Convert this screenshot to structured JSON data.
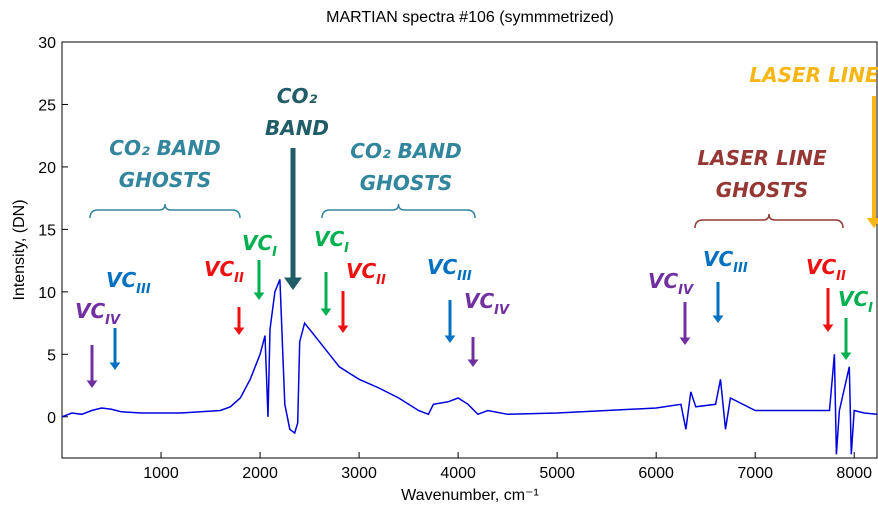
{
  "chart_data": {
    "type": "line",
    "title": "MARTIAN spectra #106 (symmmetrized)",
    "x_label": "Wavenumber, cm⁻¹",
    "y_label": "Intensity, (DN)",
    "xlim": [
      0,
      8230
    ],
    "ylim": [
      -3.3,
      30
    ],
    "xticks": [
      1000,
      2000,
      3000,
      4000,
      5000,
      6000,
      7000,
      8000
    ],
    "yticks": [
      0,
      5,
      10,
      15,
      20,
      25,
      30
    ],
    "series": [
      {
        "color": "#0000dd",
        "x": [
          0,
          100,
          200,
          300,
          400,
          500,
          600,
          800,
          1000,
          1200,
          1400,
          1600,
          1700,
          1800,
          1900,
          2000,
          2050,
          2080,
          2100,
          2150,
          2200,
          2250,
          2300,
          2350,
          2380,
          2400,
          2450,
          2500,
          2600,
          2700,
          2800,
          2900,
          3000,
          3200,
          3400,
          3600,
          3700,
          3750,
          3900,
          4000,
          4100,
          4200,
          4300,
          4500,
          5000,
          5500,
          6000,
          6250,
          6300,
          6350,
          6400,
          6600,
          6650,
          6700,
          6750,
          7000,
          7500,
          7750,
          7800,
          7820,
          7850,
          7950,
          7970,
          8000,
          8100,
          8230
        ],
        "values": [
          0,
          0.3,
          0.2,
          0.5,
          0.7,
          0.6,
          0.4,
          0.3,
          0.3,
          0.3,
          0.4,
          0.5,
          0.8,
          1.5,
          3,
          5,
          6.5,
          0,
          7,
          10,
          11,
          1,
          -1,
          -1.3,
          -0.5,
          6,
          7.5,
          7,
          6,
          5,
          4,
          3.5,
          3,
          2.3,
          1.5,
          0.5,
          0.2,
          1,
          1.2,
          1.5,
          1,
          0.2,
          0.5,
          0.2,
          0.3,
          0.5,
          0.7,
          1,
          -1,
          2,
          0.8,
          1,
          3,
          -1,
          1.5,
          0.5,
          0.5,
          0.5,
          5,
          -3,
          0.5,
          4,
          -3,
          0.5,
          0.3,
          0.2
        ]
      }
    ],
    "annotations": [
      {
        "lines": [
          "CO₂ BAND",
          "GHOSTS"
        ],
        "color": "#31859c"
      },
      {
        "lines": [
          "CO₂",
          "BAND"
        ],
        "color": "#215d67"
      },
      {
        "lines": [
          "CO₂ BAND",
          "GHOSTS"
        ],
        "color": "#31859c"
      },
      {
        "lines": [
          "LASER LINE"
        ],
        "color": "#f7b614"
      },
      {
        "lines": [
          "LASER LINE",
          "GHOSTS"
        ],
        "color": "#953735"
      }
    ],
    "markers": [
      {
        "text": "VC",
        "sub": "IV",
        "color": "#7030a0"
      },
      {
        "text": "VC",
        "sub": "III",
        "color": "#0070c0"
      },
      {
        "text": "VC",
        "sub": "II",
        "color": "#ee1111"
      },
      {
        "text": "VC",
        "sub": "I",
        "color": "#00b050"
      },
      {
        "text": "VC",
        "sub": "I",
        "color": "#00b050"
      },
      {
        "text": "VC",
        "sub": "II",
        "color": "#ee1111"
      },
      {
        "text": "VC",
        "sub": "III",
        "color": "#0070c0"
      },
      {
        "text": "VC",
        "sub": "IV",
        "color": "#7030a0"
      },
      {
        "text": "VC",
        "sub": "IV",
        "color": "#7030a0"
      },
      {
        "text": "VC",
        "sub": "III",
        "color": "#0070c0"
      },
      {
        "text": "VC",
        "sub": "II",
        "color": "#ee1111"
      },
      {
        "text": "VC",
        "sub": "I",
        "color": "#00b050"
      }
    ]
  }
}
